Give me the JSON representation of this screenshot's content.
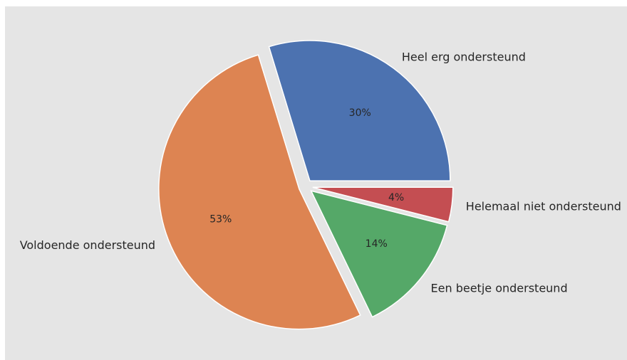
{
  "chart_data": {
    "type": "pie",
    "title": "",
    "slices": [
      {
        "label": "Heel erg ondersteund",
        "value": 30,
        "pct_label": "30%",
        "color": "#4c72b0"
      },
      {
        "label": "Voldoende ondersteund",
        "value": 53,
        "pct_label": "53%",
        "color": "#dd8452"
      },
      {
        "label": "Een beetje ondersteund",
        "value": 14,
        "pct_label": "14%",
        "color": "#55a868"
      },
      {
        "label": "Helemaal niet ondersteund",
        "value": 4,
        "pct_label": "4%",
        "color": "#c44e52"
      }
    ],
    "start_angle_deg": 0,
    "direction": "counterclockwise",
    "exploded": true,
    "background_color": "#e5e5e5"
  }
}
